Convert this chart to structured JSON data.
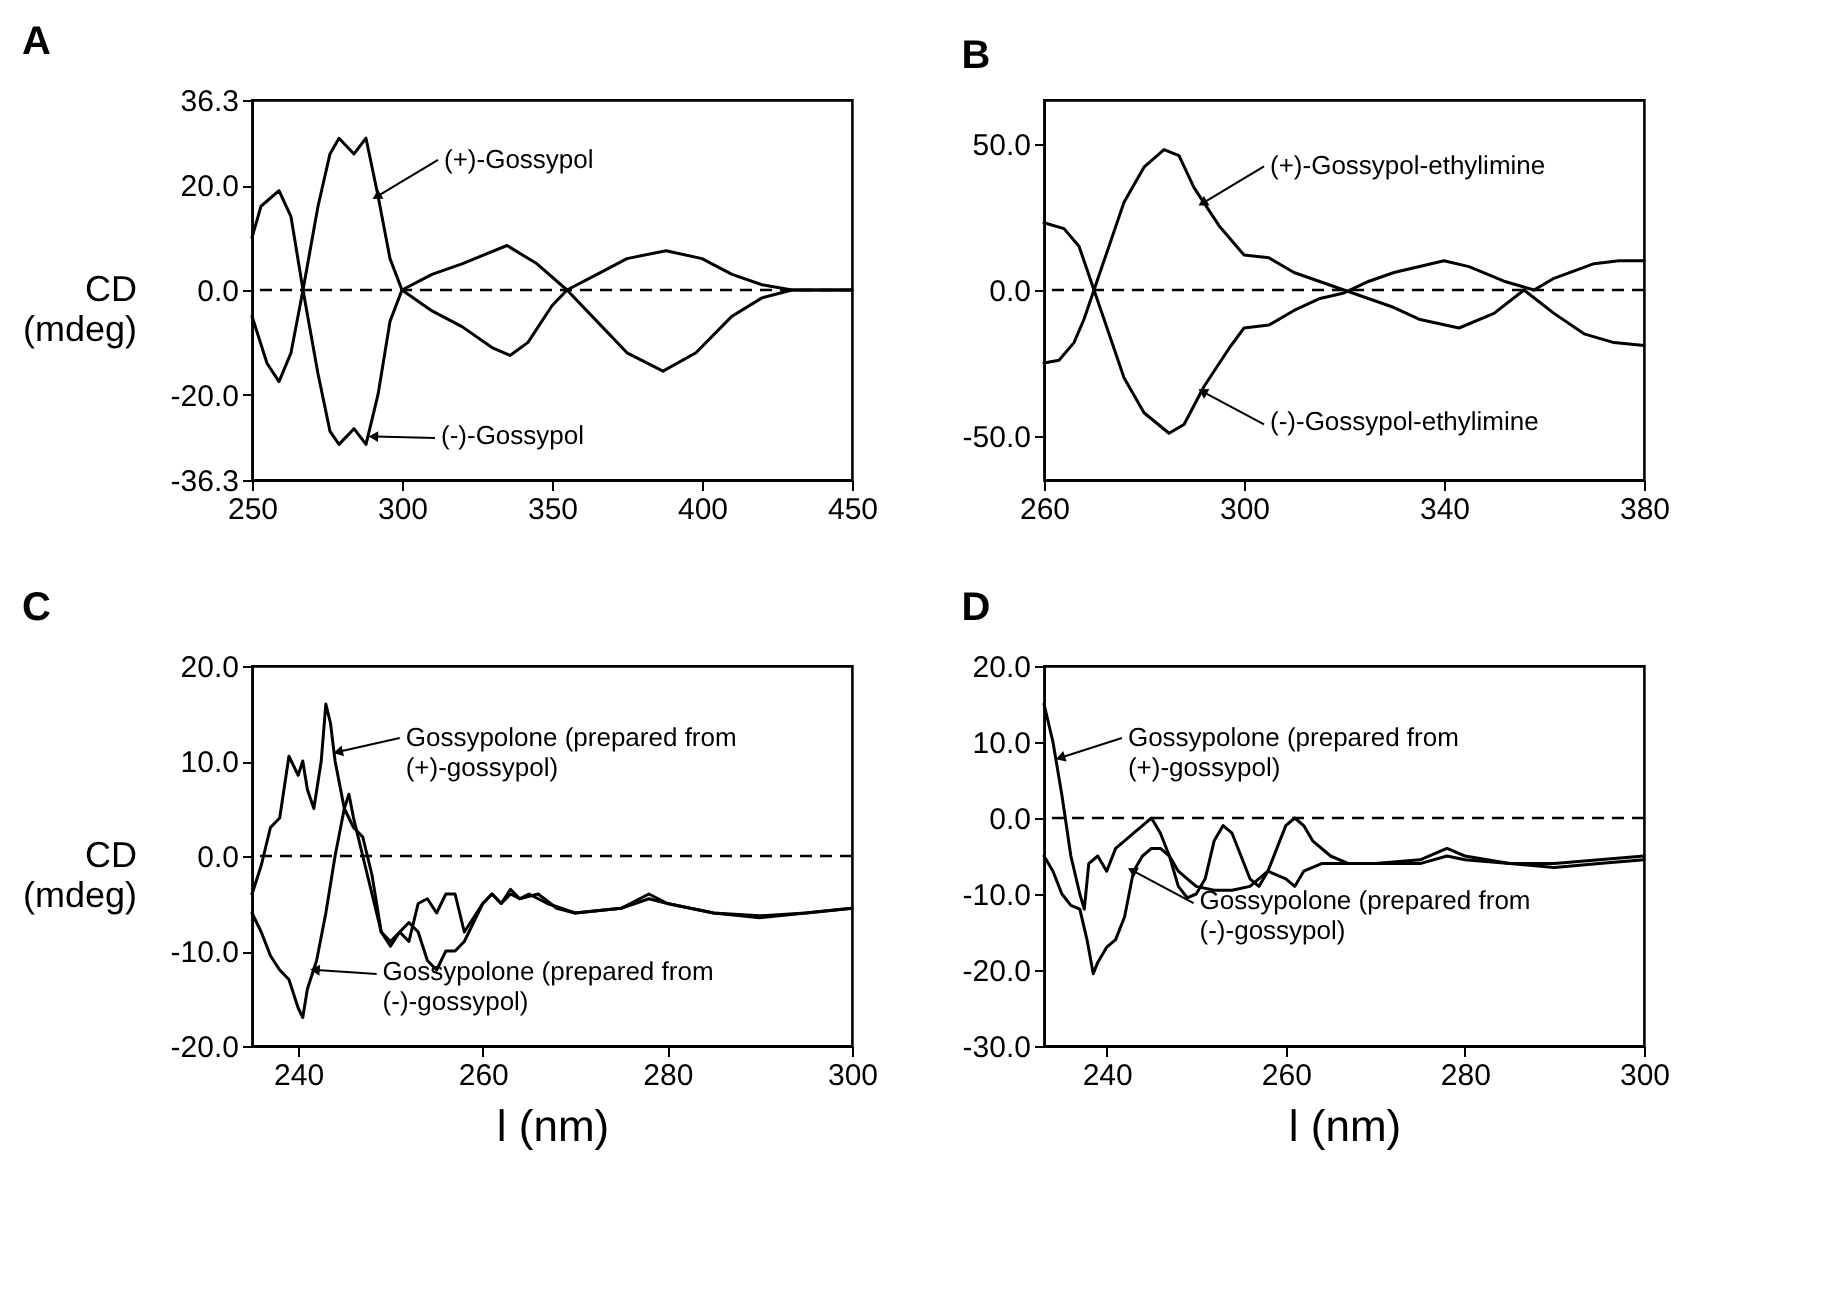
{
  "chart_data": [
    {
      "type": "line",
      "title": "A",
      "ylabel": "CD (mdeg)",
      "xlim": [
        250,
        450
      ],
      "xticks": [
        250,
        300,
        350,
        400,
        450
      ],
      "ylim": [
        -36.3,
        36.3
      ],
      "yticks": [
        {
          "value": -36.3,
          "label": "-36.3"
        },
        {
          "value": -20,
          "label": "-20.0"
        },
        {
          "value": 0,
          "label": "0.0"
        },
        {
          "value": 20,
          "label": "20.0"
        },
        {
          "value": 36.3,
          "label": "36.3"
        }
      ],
      "grid": false,
      "legend": false,
      "ref_lines": [
        {
          "axis": "y",
          "value": 0,
          "line_style": "dashed",
          "color": "#000000"
        }
      ],
      "annotations": [
        {
          "text": "(+)-Gossypol",
          "x": 292,
          "y": 18
        },
        {
          "text": "(-)-Gossypol",
          "x": 291,
          "y": -28
        }
      ],
      "series": [
        {
          "color": "#000000",
          "x": [
            250,
            255,
            259,
            263,
            267,
            272,
            276,
            279,
            284,
            288,
            292,
            296,
            300,
            310,
            320,
            335,
            345,
            355,
            365,
            375,
            387,
            398,
            410,
            420,
            430,
            450
          ],
          "values": [
            -5,
            -14,
            -17.5,
            -12,
            0,
            16,
            26,
            29,
            26,
            29,
            18,
            6,
            0,
            3,
            5,
            8.5,
            5,
            0,
            -6,
            -12,
            -15.5,
            -12,
            -5,
            -1.5,
            0,
            0
          ]
        },
        {
          "color": "#000000",
          "x": [
            250,
            253,
            259,
            263,
            267,
            272,
            276,
            279,
            284,
            288,
            292,
            296,
            300,
            310,
            320,
            330,
            336,
            342,
            350,
            355,
            365,
            375,
            388,
            400,
            410,
            420,
            430,
            450
          ],
          "values": [
            10,
            16,
            19,
            14,
            0,
            -16,
            -27,
            -29.5,
            -26.5,
            -29.5,
            -20,
            -6,
            0,
            -4,
            -7,
            -11,
            -12.5,
            -10,
            -3,
            0,
            3,
            6,
            7.5,
            6,
            3,
            1,
            0,
            0
          ]
        }
      ]
    },
    {
      "type": "line",
      "title": "B",
      "xlim": [
        260,
        380
      ],
      "xticks": [
        260,
        300,
        340,
        380
      ],
      "ylim": [
        -65,
        65
      ],
      "yticks": [
        {
          "value": -50,
          "label": "-50.0"
        },
        {
          "value": 0,
          "label": "0.0"
        },
        {
          "value": 50,
          "label": "50.0"
        }
      ],
      "grid": false,
      "legend": false,
      "ref_lines": [
        {
          "axis": "y",
          "value": 0,
          "line_style": "dashed",
          "color": "#000000"
        }
      ],
      "annotations": [
        {
          "text": "(+)-Gossypol-ethylimine",
          "x": 292,
          "y": 30
        },
        {
          "text": "(-)-Gossypol-ethylimine",
          "x": 292,
          "y": -35
        }
      ],
      "series": [
        {
          "color": "#000000",
          "x": [
            260,
            263,
            266,
            268,
            270,
            273,
            276,
            280,
            284,
            287,
            290,
            295,
            300,
            305,
            310,
            315,
            320,
            330,
            335,
            343,
            350,
            356,
            362,
            368,
            374,
            380
          ],
          "values": [
            -25,
            -24,
            -18,
            -10,
            0,
            15,
            30,
            42,
            48,
            46,
            35,
            22,
            12,
            11,
            6,
            3,
            0,
            -6,
            -10,
            -13,
            -8,
            0,
            -8,
            -15,
            -18,
            -19
          ]
        },
        {
          "color": "#000000",
          "x": [
            260,
            264,
            267,
            270,
            273,
            276,
            280,
            285,
            288,
            292,
            297,
            300,
            305,
            310,
            315,
            320,
            325,
            330,
            340,
            345,
            352,
            358,
            362,
            370,
            375,
            380
          ],
          "values": [
            23,
            21,
            15,
            0,
            -15,
            -30,
            -42,
            -49,
            -46,
            -33,
            -20,
            -13,
            -12,
            -7,
            -3,
            -1,
            3,
            6,
            10,
            8,
            3,
            0,
            4,
            9,
            10,
            10
          ]
        }
      ]
    },
    {
      "type": "line",
      "title": "C",
      "ylabel": "CD (mdeg)",
      "xlabel": "l (nm)",
      "xlim": [
        235,
        300
      ],
      "xticks": [
        240,
        260,
        280,
        300
      ],
      "ylim": [
        -20,
        20
      ],
      "yticks": [
        {
          "value": -20,
          "label": "-20.0"
        },
        {
          "value": -10,
          "label": "-10.0"
        },
        {
          "value": 0,
          "label": "0.0"
        },
        {
          "value": 10,
          "label": "10.0"
        },
        {
          "value": 20,
          "label": "20.0"
        }
      ],
      "grid": false,
      "legend": false,
      "ref_lines": [
        {
          "axis": "y",
          "value": 0,
          "line_style": "dashed",
          "color": "#000000"
        }
      ],
      "annotations": [
        {
          "text": "Gossypolone (prepared from (+)-gossypol)",
          "x": 244.5,
          "y": 11
        },
        {
          "text": "Gossypolone (prepared from (-)-gossypol)",
          "x": 242,
          "y": -12
        }
      ],
      "series": [
        {
          "color": "#000000",
          "x": [
            235,
            236,
            237,
            238,
            239,
            240,
            240.5,
            241,
            241.7,
            242.5,
            243,
            243.5,
            244,
            245,
            246,
            247,
            248,
            249,
            250,
            251,
            252,
            253,
            254,
            255,
            256,
            257,
            258,
            259,
            260,
            261,
            262,
            263,
            264,
            265,
            267,
            270,
            275,
            278,
            280,
            285,
            290,
            295,
            300
          ],
          "values": [
            -4,
            -1,
            3,
            4,
            10.5,
            8.5,
            10,
            7,
            5,
            10,
            16,
            14,
            10,
            5,
            3,
            2,
            -2,
            -8,
            -9,
            -8,
            -9,
            -5,
            -4.5,
            -6,
            -4,
            -4,
            -8,
            -6.5,
            -5,
            -4,
            -5,
            -4,
            -4.5,
            -4,
            -5,
            -6,
            -5.5,
            -4,
            -5,
            -6,
            -6.5,
            -6,
            -5.5
          ]
        },
        {
          "color": "#000000",
          "x": [
            235,
            236,
            237,
            238,
            239,
            240,
            240.5,
            241,
            242,
            243,
            244,
            245,
            245.5,
            246,
            247,
            248,
            249,
            250,
            251,
            252,
            253,
            254,
            255,
            256,
            257,
            258,
            259,
            260,
            261,
            262,
            263,
            264,
            266,
            268,
            270,
            275,
            278,
            280,
            285,
            290,
            295,
            300
          ],
          "values": [
            -6,
            -8,
            -10.5,
            -12,
            -13,
            -16,
            -17,
            -14,
            -11,
            -6,
            0,
            5,
            6.5,
            4,
            0,
            -4,
            -8,
            -9.5,
            -8,
            -7,
            -8,
            -11,
            -12,
            -10,
            -10,
            -9,
            -7,
            -5,
            -4,
            -5,
            -3.5,
            -4.5,
            -4,
            -5.5,
            -6,
            -5.5,
            -4.5,
            -5,
            -6,
            -6.3,
            -6,
            -5.5
          ]
        }
      ]
    },
    {
      "type": "line",
      "title": "D",
      "xlabel": "l (nm)",
      "xlim": [
        233,
        300
      ],
      "xticks": [
        240,
        260,
        280,
        300
      ],
      "ylim": [
        -30,
        20
      ],
      "yticks": [
        {
          "value": -30,
          "label": "-30.0"
        },
        {
          "value": -20,
          "label": "-20.0"
        },
        {
          "value": -10,
          "label": "-10.0"
        },
        {
          "value": 0,
          "label": "0.0"
        },
        {
          "value": 10,
          "label": "10.0"
        },
        {
          "value": 20,
          "label": "20.0"
        }
      ],
      "grid": false,
      "legend": false,
      "ref_lines": [
        {
          "axis": "y",
          "value": 0,
          "line_style": "dashed",
          "color": "#000000"
        }
      ],
      "annotations": [
        {
          "text": "Gossypolone (prepared from (+)-gossypol)",
          "x": 235,
          "y": 8
        },
        {
          "text": "Gossypolone (prepared from (-)-gossypol)",
          "x": 243,
          "y": -7
        }
      ],
      "series": [
        {
          "color": "#000000",
          "x": [
            233,
            234,
            235,
            236,
            237,
            237.5,
            238,
            239,
            240,
            241,
            242,
            243,
            244,
            245,
            246,
            247,
            248,
            249,
            250,
            251,
            252,
            253,
            254,
            255,
            256,
            257,
            258,
            259,
            260,
            261,
            262,
            263,
            265,
            267,
            270,
            275,
            278,
            280,
            285,
            290,
            295,
            300
          ],
          "values": [
            15,
            10,
            3,
            -5,
            -10,
            -12,
            -6,
            -5,
            -7,
            -4,
            -3,
            -2,
            -1,
            0,
            -2,
            -5,
            -9,
            -10.5,
            -10,
            -8,
            -3,
            -1,
            -2,
            -5,
            -8,
            -9,
            -7,
            -4,
            -1,
            0,
            -1,
            -3,
            -5,
            -6,
            -6,
            -5.5,
            -4,
            -5,
            -6,
            -6,
            -5.5,
            -5
          ]
        },
        {
          "color": "#000000",
          "x": [
            233,
            234,
            235,
            236,
            237,
            237.8,
            238.5,
            239,
            240,
            241,
            242,
            243,
            244,
            245,
            246,
            247,
            248,
            249,
            250,
            252,
            254,
            256,
            258,
            260,
            261,
            262,
            264,
            266,
            270,
            275,
            278,
            280,
            285,
            290,
            295,
            300
          ],
          "values": [
            -5,
            -7,
            -10,
            -11.5,
            -12,
            -16,
            -20.5,
            -19,
            -17,
            -16,
            -13,
            -7,
            -5,
            -4,
            -4,
            -5,
            -7,
            -8,
            -9,
            -9.5,
            -9.5,
            -9,
            -7,
            -8,
            -9,
            -7,
            -6,
            -6,
            -6,
            -6,
            -5,
            -5.5,
            -6,
            -6.5,
            -6,
            -5.5
          ]
        }
      ]
    }
  ]
}
